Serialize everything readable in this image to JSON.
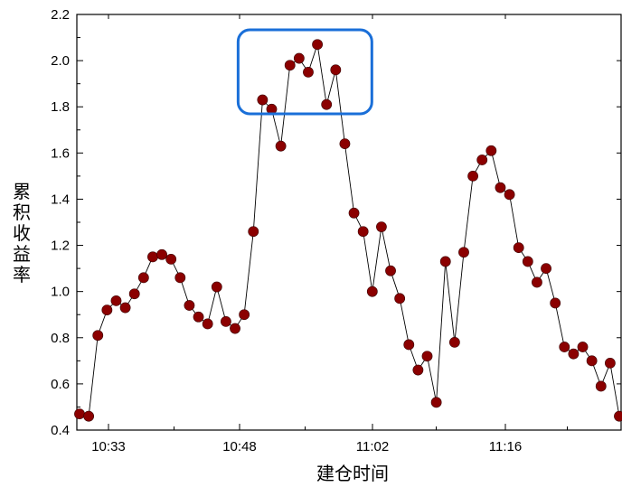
{
  "chart_data": {
    "type": "line",
    "title": "",
    "xlabel": "建仓时间",
    "ylabel": "累积收益率",
    "ylim": [
      0.4,
      2.2
    ],
    "yticks": [
      "0.4",
      "0.6",
      "0.8",
      "1.0",
      "1.2",
      "1.4",
      "1.6",
      "1.8",
      "2.0",
      "2.2"
    ],
    "xticks": [
      "10:33",
      "10:48",
      "11:02",
      "11:16"
    ],
    "grid": false,
    "legend": "none",
    "marker": "circle",
    "colors": {
      "marker": "#8b0000",
      "line": "#000000",
      "highlight_box": "#1a6fd8"
    },
    "highlight": {
      "label": "",
      "x_range_index": [
        20,
        28
      ]
    },
    "series": [
      {
        "values": [
          0.47,
          0.46,
          0.81,
          0.92,
          0.96,
          0.93,
          0.99,
          1.06,
          1.15,
          1.16,
          1.14,
          1.06,
          0.94,
          0.89,
          0.86,
          1.02,
          0.87,
          0.84,
          0.9,
          1.26,
          1.83,
          1.79,
          1.63,
          1.98,
          2.01,
          1.95,
          2.07,
          1.81,
          1.96,
          1.64,
          1.34,
          1.26,
          1.0,
          1.28,
          1.09,
          0.97,
          0.77,
          0.66,
          0.72,
          0.52,
          1.13,
          0.78,
          1.17,
          1.5,
          1.57,
          1.61,
          1.45,
          1.42,
          1.19,
          1.13,
          1.04,
          1.1,
          0.95,
          0.76,
          0.73,
          0.76,
          0.7,
          0.59,
          0.69,
          0.46
        ]
      }
    ]
  }
}
